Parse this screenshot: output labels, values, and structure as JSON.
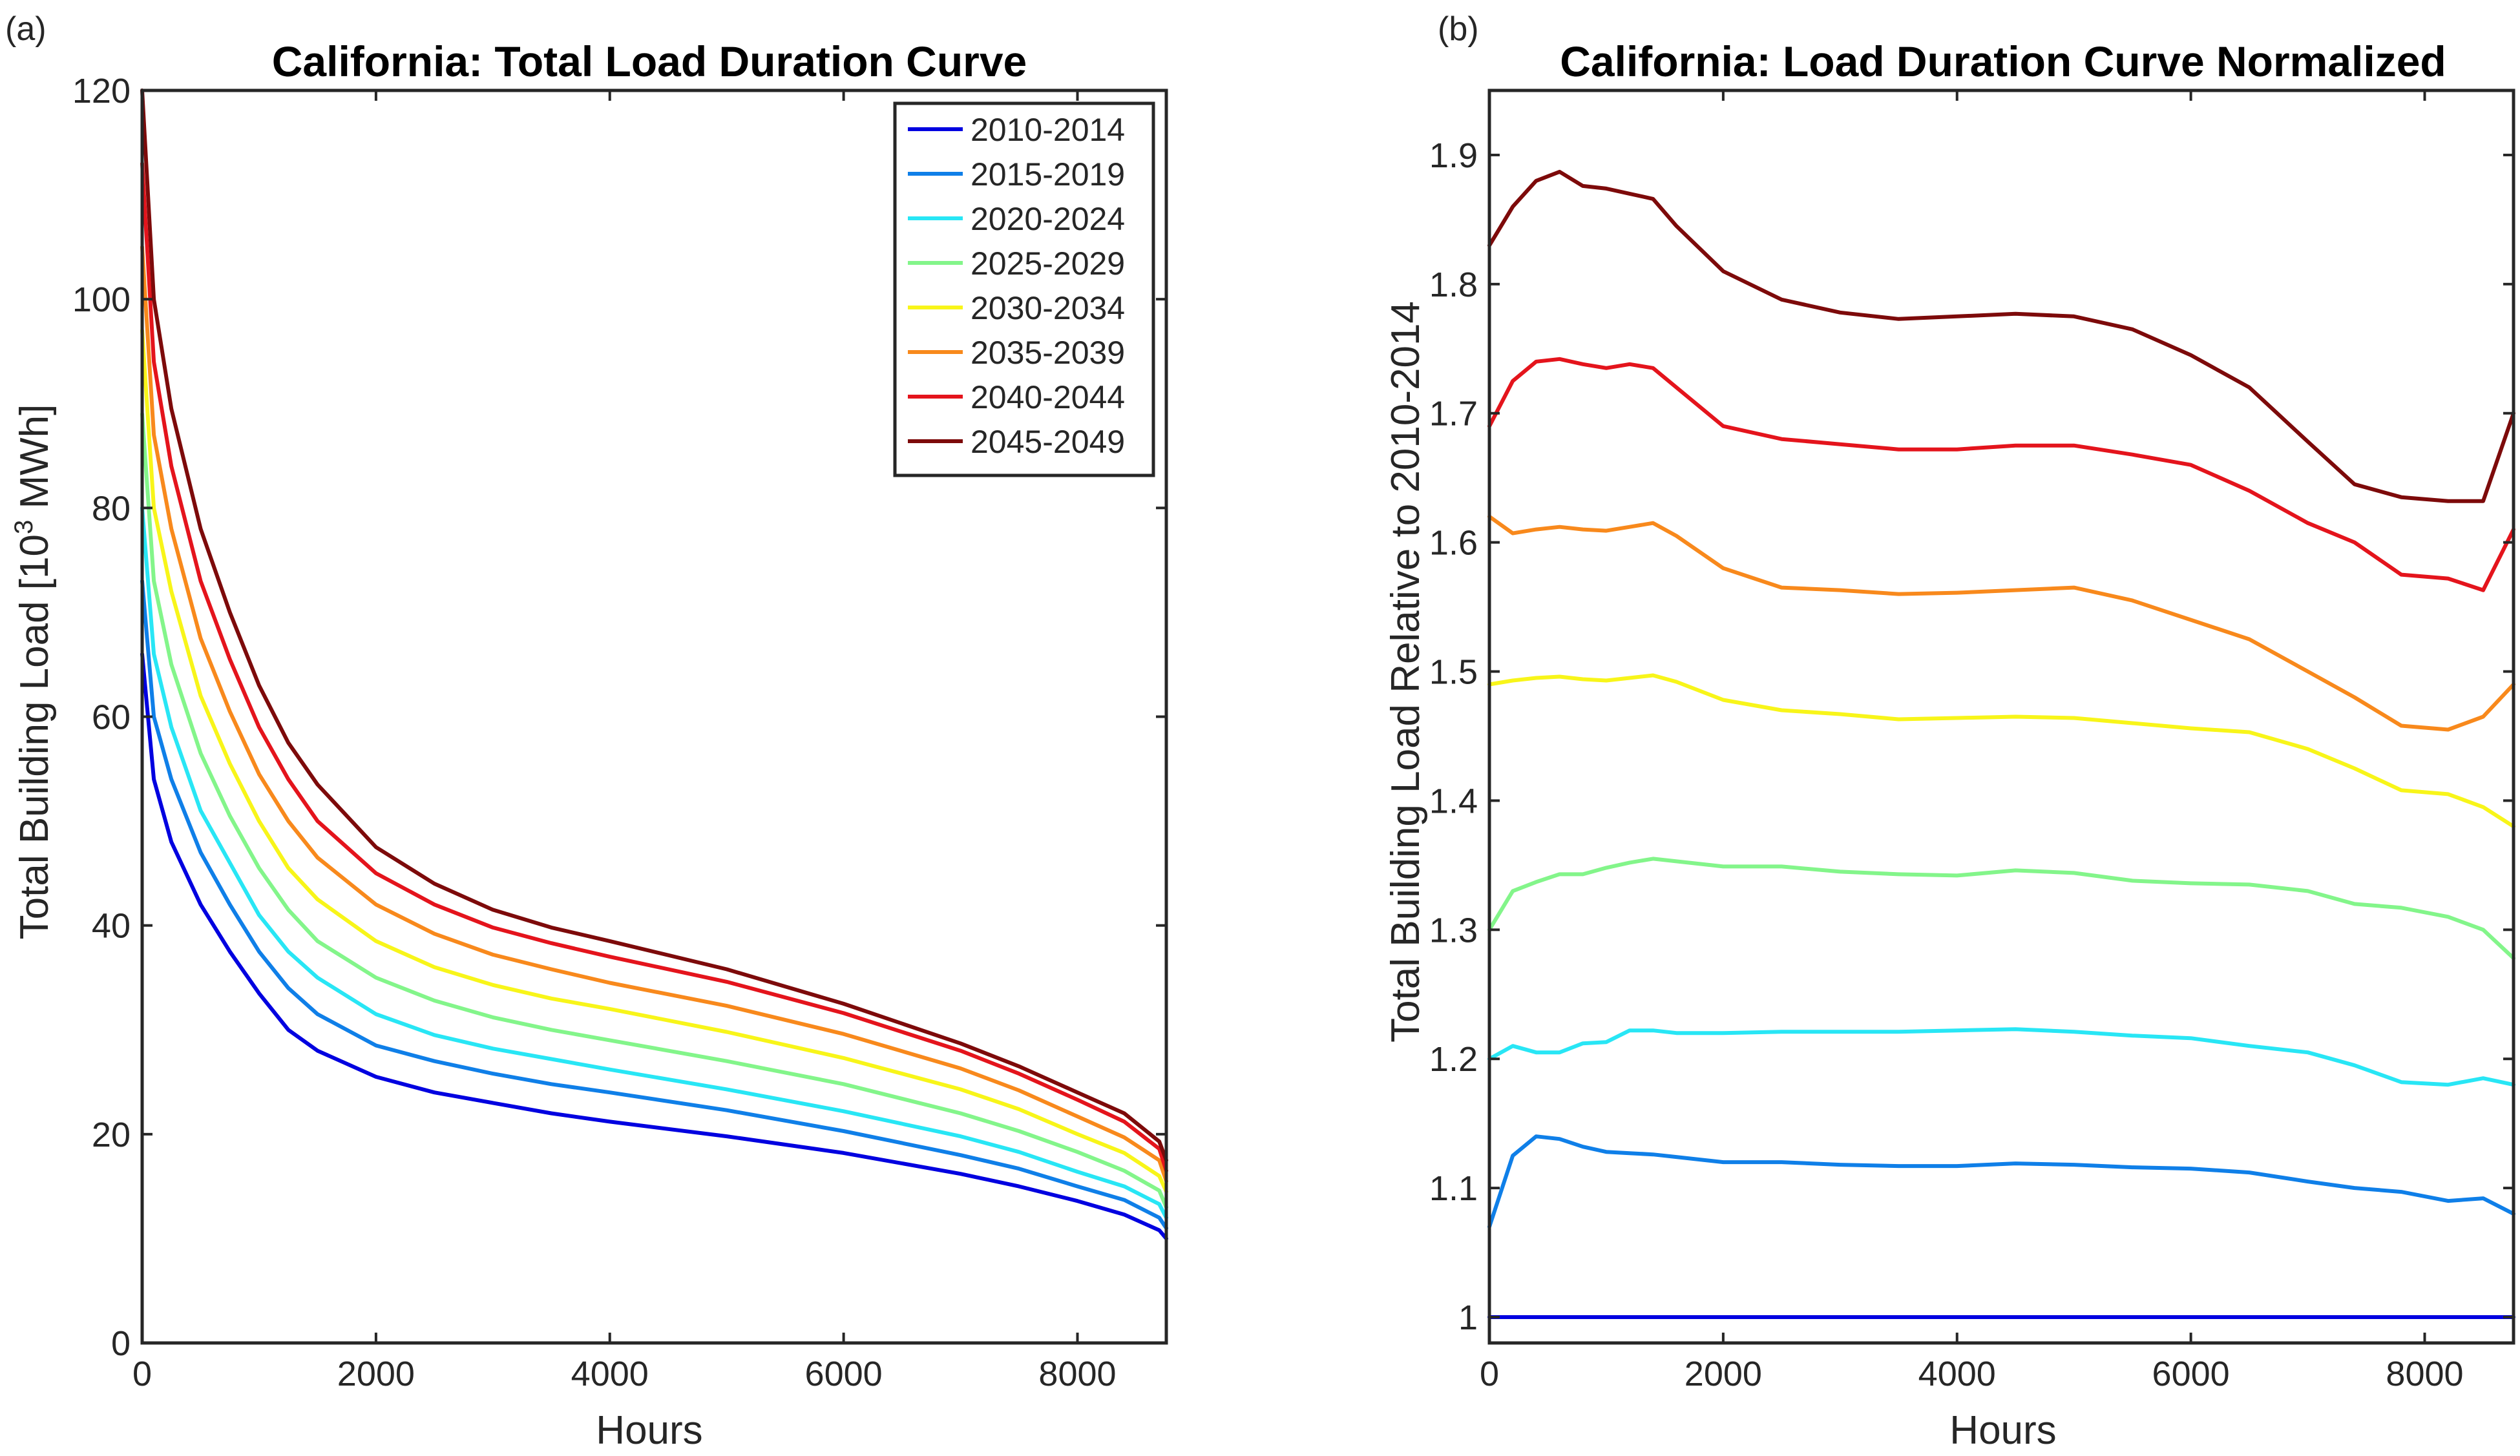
{
  "chart_data": [
    {
      "type": "line",
      "panel_label": "(a)",
      "title": "California: Total Load Duration Curve",
      "xlabel": "Hours",
      "ylabel": "Total Building Load [10³ MWh]",
      "ylabel_pre": "Total Building Load [10",
      "ylabel_sup": "3",
      "ylabel_post": " MWh]",
      "xlim": [
        0,
        8760
      ],
      "ylim": [
        0,
        120
      ],
      "xticks": [
        0,
        2000,
        4000,
        6000,
        8000
      ],
      "yticks": [
        0,
        20,
        40,
        60,
        80,
        100,
        120
      ],
      "xtick_labels": [
        "0",
        "2000",
        "4000",
        "6000",
        "8000"
      ],
      "ytick_labels": [
        "0",
        "20",
        "40",
        "60",
        "80",
        "100",
        "120"
      ],
      "legend_position": "top-right",
      "x": [
        0,
        100,
        250,
        500,
        750,
        1000,
        1250,
        1500,
        2000,
        2500,
        3000,
        3500,
        4000,
        5000,
        6000,
        7000,
        7500,
        8000,
        8400,
        8700,
        8760
      ],
      "series": [
        {
          "name": "2010-2014",
          "color": "#0000e0",
          "values": [
            66,
            54,
            48,
            42,
            37.5,
            33.5,
            30,
            28,
            25.5,
            24,
            23,
            22,
            21.2,
            19.8,
            18.2,
            16.2,
            15,
            13.6,
            12.3,
            10.8,
            10
          ]
        },
        {
          "name": "2015-2019",
          "color": "#0f7fe8",
          "values": [
            73,
            60,
            54,
            47,
            42,
            37.5,
            34,
            31.5,
            28.5,
            27,
            25.8,
            24.8,
            24,
            22.3,
            20.3,
            18,
            16.7,
            15,
            13.7,
            12,
            11
          ]
        },
        {
          "name": "2020-2024",
          "color": "#28e6f5",
          "values": [
            80,
            66,
            59,
            51,
            46,
            41,
            37.5,
            35,
            31.5,
            29.5,
            28.2,
            27.2,
            26.2,
            24.3,
            22.2,
            19.8,
            18.3,
            16.4,
            15,
            13.3,
            12
          ]
        },
        {
          "name": "2025-2029",
          "color": "#83f58a",
          "values": [
            89,
            73,
            65,
            56.5,
            50.5,
            45.5,
            41.5,
            38.5,
            35,
            32.8,
            31.2,
            30,
            29,
            27,
            24.8,
            22,
            20.3,
            18.3,
            16.5,
            14.6,
            13
          ]
        },
        {
          "name": "2030-2034",
          "color": "#f8f519",
          "values": [
            97,
            80,
            72,
            62,
            55.5,
            50,
            45.5,
            42.5,
            38.5,
            36,
            34.3,
            33,
            32,
            29.8,
            27.3,
            24.3,
            22.4,
            20,
            18.2,
            16,
            14.5
          ]
        },
        {
          "name": "2035-2039",
          "color": "#f8891c",
          "values": [
            105,
            87,
            78,
            67.5,
            60.5,
            54.5,
            50,
            46.5,
            42,
            39.2,
            37.2,
            35.8,
            34.5,
            32.3,
            29.6,
            26.3,
            24.2,
            21.7,
            19.7,
            17.5,
            15.5
          ]
        },
        {
          "name": "2040-2044",
          "color": "#e4141c",
          "values": [
            113,
            94,
            84,
            73,
            65.5,
            59,
            54,
            50,
            45,
            42,
            39.8,
            38.3,
            37,
            34.6,
            31.6,
            28,
            25.8,
            23.3,
            21.2,
            18.6,
            16.5
          ]
        },
        {
          "name": "2045-2049",
          "color": "#7d0a0a",
          "values": [
            120,
            100,
            89.5,
            78,
            70,
            63,
            57.5,
            53.5,
            47.5,
            44,
            41.5,
            39.8,
            38.5,
            35.8,
            32.5,
            28.7,
            26.5,
            24,
            22,
            19.3,
            17.5
          ]
        }
      ]
    },
    {
      "type": "line",
      "panel_label": "(b)",
      "title": "California: Load Duration Curve Normalized",
      "xlabel": "Hours",
      "ylabel": "Total Building Load Relative to 2010-2014",
      "xlim": [
        0,
        8760
      ],
      "ylim": [
        0.98,
        1.95
      ],
      "xticks": [
        0,
        2000,
        4000,
        6000,
        8000
      ],
      "yticks": [
        1,
        1.1,
        1.2,
        1.3,
        1.4,
        1.5,
        1.6,
        1.7,
        1.8,
        1.9
      ],
      "xtick_labels": [
        "0",
        "2000",
        "4000",
        "6000",
        "8000"
      ],
      "ytick_labels": [
        "1",
        "1.1",
        "1.2",
        "1.3",
        "1.4",
        "1.5",
        "1.6",
        "1.7",
        "1.8",
        "1.9"
      ],
      "x": [
        0,
        200,
        400,
        600,
        800,
        1000,
        1200,
        1400,
        1600,
        2000,
        2500,
        3000,
        3500,
        4000,
        4500,
        5000,
        5500,
        6000,
        6500,
        7000,
        7400,
        7800,
        8200,
        8500,
        8760
      ],
      "series": [
        {
          "name": "2010-2014",
          "color": "#0000e0",
          "values": [
            1,
            1,
            1,
            1,
            1,
            1,
            1,
            1,
            1,
            1,
            1,
            1,
            1,
            1,
            1,
            1,
            1,
            1,
            1,
            1,
            1,
            1,
            1,
            1,
            1
          ]
        },
        {
          "name": "2015-2019",
          "color": "#0f7fe8",
          "values": [
            1.07,
            1.125,
            1.14,
            1.138,
            1.132,
            1.128,
            1.127,
            1.126,
            1.124,
            1.12,
            1.12,
            1.118,
            1.117,
            1.117,
            1.119,
            1.118,
            1.116,
            1.115,
            1.112,
            1.105,
            1.1,
            1.097,
            1.09,
            1.092,
            1.08
          ]
        },
        {
          "name": "2020-2024",
          "color": "#28e6f5",
          "values": [
            1.2,
            1.21,
            1.205,
            1.205,
            1.212,
            1.213,
            1.222,
            1.222,
            1.22,
            1.22,
            1.221,
            1.221,
            1.221,
            1.222,
            1.223,
            1.221,
            1.218,
            1.216,
            1.21,
            1.205,
            1.195,
            1.182,
            1.18,
            1.185,
            1.18
          ]
        },
        {
          "name": "2025-2029",
          "color": "#83f58a",
          "values": [
            1.3,
            1.33,
            1.337,
            1.343,
            1.343,
            1.348,
            1.352,
            1.355,
            1.353,
            1.349,
            1.349,
            1.345,
            1.343,
            1.342,
            1.346,
            1.344,
            1.338,
            1.336,
            1.335,
            1.33,
            1.32,
            1.317,
            1.31,
            1.3,
            1.278
          ]
        },
        {
          "name": "2030-2034",
          "color": "#f8f519",
          "values": [
            1.49,
            1.493,
            1.495,
            1.496,
            1.494,
            1.493,
            1.495,
            1.497,
            1.492,
            1.478,
            1.47,
            1.467,
            1.463,
            1.464,
            1.465,
            1.464,
            1.46,
            1.456,
            1.453,
            1.44,
            1.425,
            1.408,
            1.405,
            1.395,
            1.38
          ]
        },
        {
          "name": "2035-2039",
          "color": "#f8891c",
          "values": [
            1.62,
            1.607,
            1.61,
            1.612,
            1.61,
            1.609,
            1.612,
            1.615,
            1.605,
            1.58,
            1.565,
            1.563,
            1.56,
            1.561,
            1.563,
            1.565,
            1.555,
            1.54,
            1.525,
            1.5,
            1.48,
            1.458,
            1.455,
            1.465,
            1.49
          ]
        },
        {
          "name": "2040-2044",
          "color": "#e4141c",
          "values": [
            1.69,
            1.725,
            1.74,
            1.742,
            1.738,
            1.735,
            1.738,
            1.735,
            1.72,
            1.69,
            1.68,
            1.676,
            1.672,
            1.672,
            1.675,
            1.675,
            1.668,
            1.66,
            1.64,
            1.615,
            1.6,
            1.575,
            1.572,
            1.563,
            1.61
          ]
        },
        {
          "name": "2045-2049",
          "color": "#7d0a0a",
          "values": [
            1.83,
            1.86,
            1.88,
            1.887,
            1.876,
            1.874,
            1.87,
            1.866,
            1.845,
            1.81,
            1.788,
            1.778,
            1.773,
            1.775,
            1.777,
            1.775,
            1.765,
            1.745,
            1.72,
            1.678,
            1.645,
            1.635,
            1.632,
            1.632,
            1.7
          ]
        }
      ]
    }
  ]
}
